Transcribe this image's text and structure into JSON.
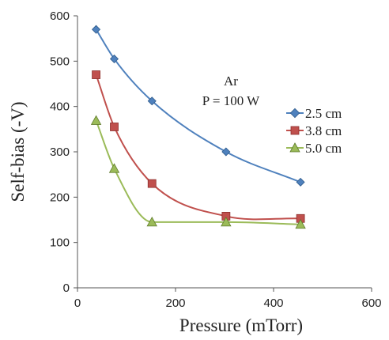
{
  "chart_data": {
    "type": "line",
    "xlabel": "Pressure (mTorr)",
    "ylabel": "Self-bias (-V)",
    "xlim": [
      0,
      600
    ],
    "ylim": [
      0,
      600
    ],
    "xticks": [
      0,
      200,
      400,
      600
    ],
    "yticks": [
      0,
      100,
      200,
      300,
      400,
      500,
      600
    ],
    "grid": false,
    "legend_position": "right",
    "annotations": [
      "Ar",
      "P = 100 W"
    ],
    "series": [
      {
        "name": "2.5 cm",
        "color": "#4f81bd",
        "marker": "diamond",
        "x": [
          38,
          75,
          152,
          303,
          455
        ],
        "y": [
          570,
          505,
          412,
          300,
          233
        ]
      },
      {
        "name": "3.8 cm",
        "color": "#c0504d",
        "marker": "square",
        "x": [
          38,
          75,
          152,
          303,
          455
        ],
        "y": [
          470,
          355,
          230,
          158,
          153
        ]
      },
      {
        "name": "5.0 cm",
        "color": "#9bbb59",
        "marker": "triangle",
        "x": [
          38,
          75,
          152,
          303,
          455
        ],
        "y": [
          369,
          263,
          145,
          145,
          140
        ]
      }
    ]
  }
}
